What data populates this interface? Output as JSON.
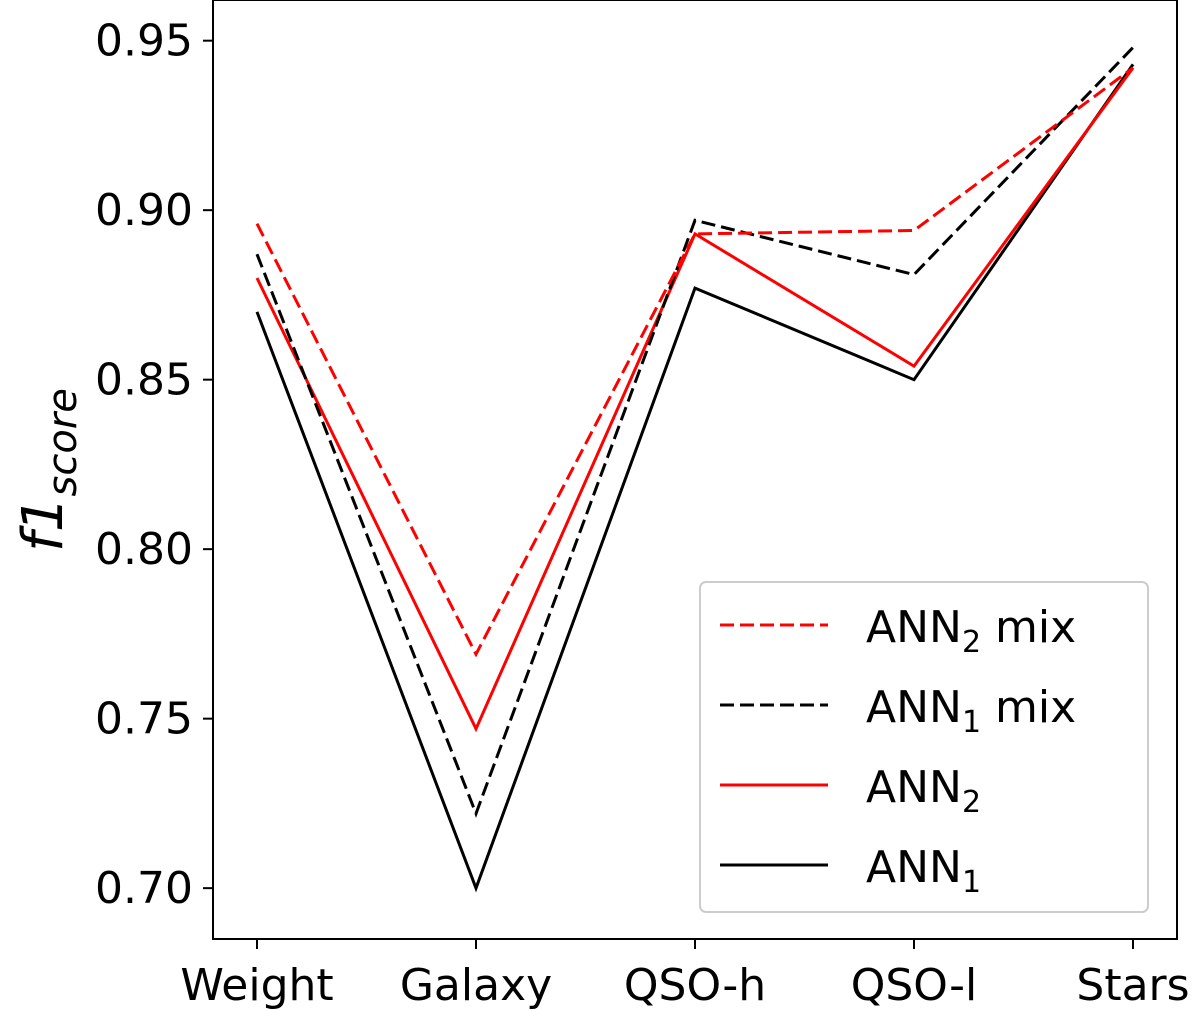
{
  "chart_data": {
    "type": "line",
    "title": "",
    "xlabel": "",
    "ylabel": {
      "main": "f1",
      "sub": "score"
    },
    "categories": [
      "Weight",
      "Galaxy",
      "QSO-h",
      "QSO-l",
      "Stars"
    ],
    "ylim": [
      0.685,
      0.962
    ],
    "yticks": [
      0.7,
      0.75,
      0.8,
      0.85,
      0.9,
      0.95
    ],
    "ytick_labels": [
      "0.70",
      "0.75",
      "0.80",
      "0.85",
      "0.90",
      "0.95"
    ],
    "legend_position": "lower-right",
    "series": [
      {
        "key": "ann2mix",
        "name": "ANN",
        "sub": "2",
        "suffix": " mix",
        "color": "#ff0000",
        "dash": "dashed",
        "values": [
          0.896,
          0.769,
          0.893,
          0.894,
          0.942
        ]
      },
      {
        "key": "ann1mix",
        "name": "ANN",
        "sub": "1",
        "suffix": " mix",
        "color": "#000000",
        "dash": "dashed",
        "values": [
          0.887,
          0.722,
          0.897,
          0.881,
          0.948
        ]
      },
      {
        "key": "ann2",
        "name": "ANN",
        "sub": "2",
        "suffix": "",
        "color": "#ff0000",
        "dash": "solid",
        "values": [
          0.88,
          0.747,
          0.893,
          0.854,
          0.942
        ]
      },
      {
        "key": "ann1",
        "name": "ANN",
        "sub": "1",
        "suffix": "",
        "color": "#000000",
        "dash": "solid",
        "values": [
          0.87,
          0.7,
          0.877,
          0.85,
          0.943
        ]
      }
    ]
  }
}
